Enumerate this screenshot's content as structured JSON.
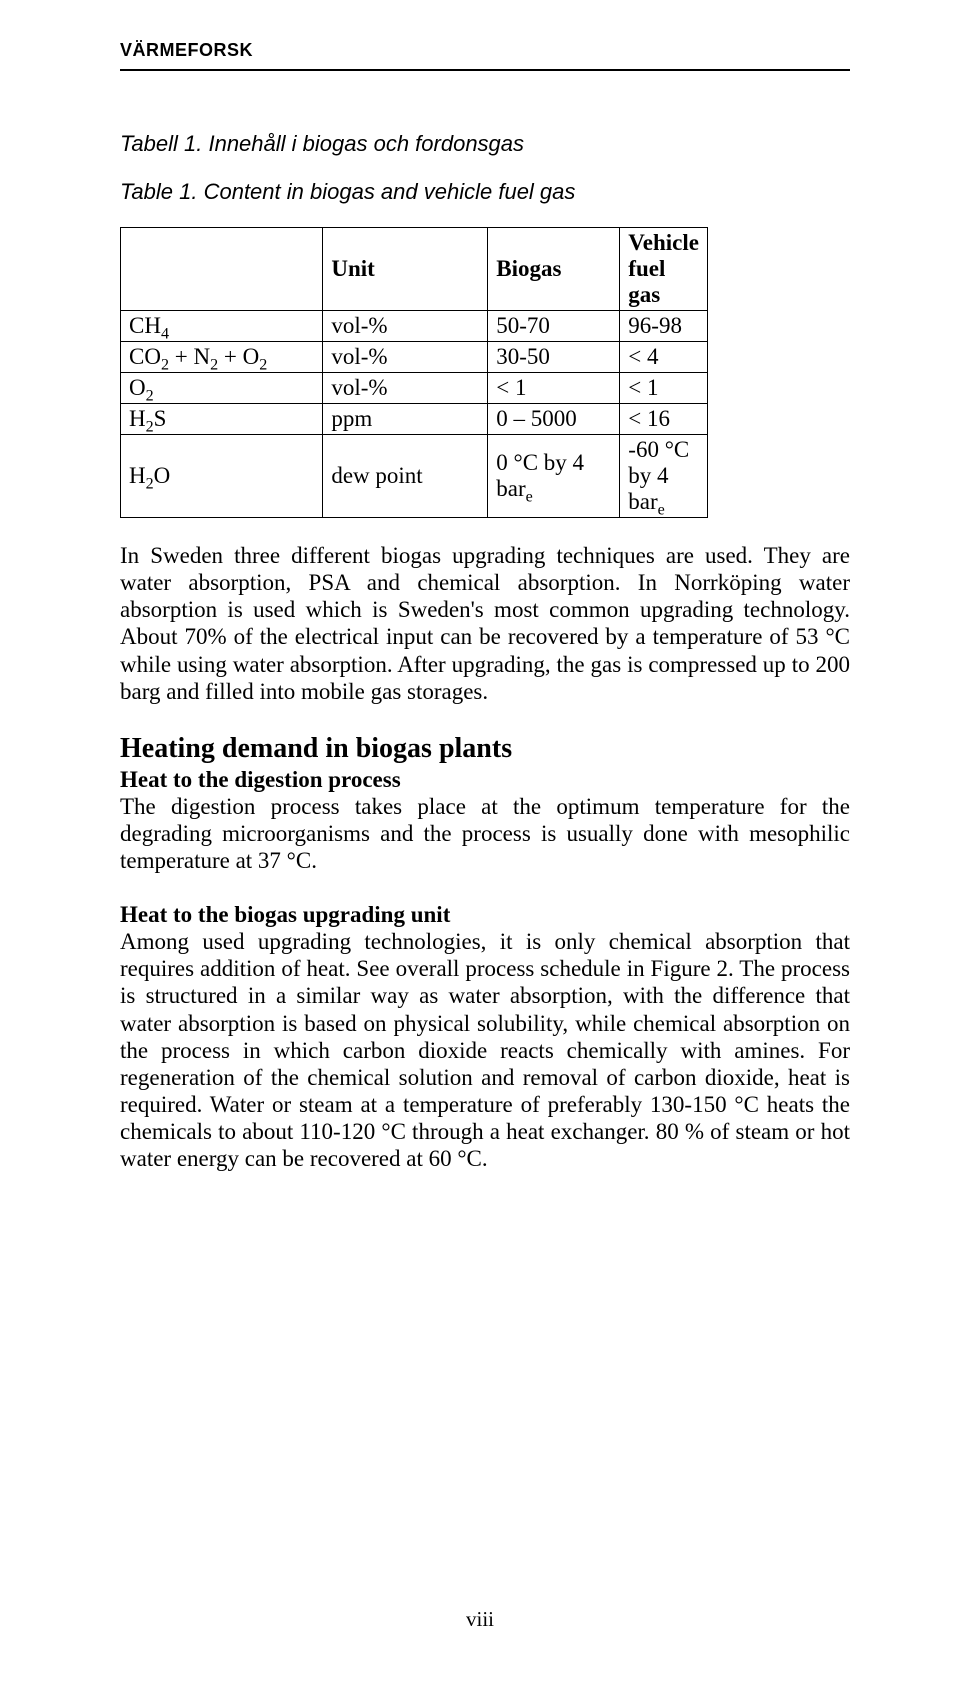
{
  "header": {
    "brand": "VÄRMEFORSK"
  },
  "captions": {
    "tabell": "Tabell 1.  Innehåll i biogas och fordonsgas",
    "table": "Table 1.  Content in biogas and vehicle fuel gas"
  },
  "table": {
    "headers": [
      "",
      "Unit",
      "Biogas",
      "Vehicle fuel gas"
    ],
    "rows": [
      {
        "label_html": "CH<sub>4</sub>",
        "unit": "vol-%",
        "biogas": "50-70",
        "vehicle": "96-98"
      },
      {
        "label_html": "CO<sub>2</sub> + N<sub>2</sub> + O<sub>2</sub>",
        "unit": "vol-%",
        "biogas": "30-50",
        "vehicle": "< 4"
      },
      {
        "label_html": "O<sub>2</sub>",
        "unit": "vol-%",
        "biogas": "< 1",
        "vehicle": "< 1"
      },
      {
        "label_html": "H<sub>2</sub>S",
        "unit": "ppm",
        "biogas": "0 – 5000",
        "vehicle": "< 16"
      },
      {
        "label_html": "H<sub>2</sub>O",
        "unit": "dew point",
        "biogas_html": "0 °C by 4 bar<sub>e</sub>",
        "vehicle_html": "-60 °C by 4 bar<sub>e</sub>"
      }
    ]
  },
  "paragraphs": {
    "p1": "In Sweden three different biogas upgrading techniques are used. They are water absorption, PSA and chemical absorption. In Norrköping water absorption is used which is Sweden's most common upgrading technology. About 70% of the electrical input can be recovered by a temperature of 53 °C while using water absorption. After upgrading, the gas is compressed up to 200 barg and filled into mobile gas storages.",
    "h2": "Heating demand in biogas plants",
    "sub1": "Heat to the digestion process",
    "p2": "The digestion process takes place at the optimum temperature for the degrading microorganisms and the process is usually done with mesophilic temperature at 37 °C.",
    "sub2": "Heat to the biogas upgrading unit",
    "p3": "Among used upgrading technologies, it is only chemical absorption that requires addition of heat. See overall process schedule in Figure 2. The process is structured in a similar way as water absorption, with the difference that water absorption is based on physical solubility, while chemical absorption on the process in which carbon dioxide reacts chemically with amines. For regeneration of the chemical solution and removal of carbon dioxide, heat is required. Water or steam at a temperature of preferably 130-150 °C heats the chemicals to about 110-120 °C through a heat exchanger. 80 % of steam or hot water energy can be recovered at 60 °C."
  },
  "footer": {
    "pagenum": "viii"
  }
}
